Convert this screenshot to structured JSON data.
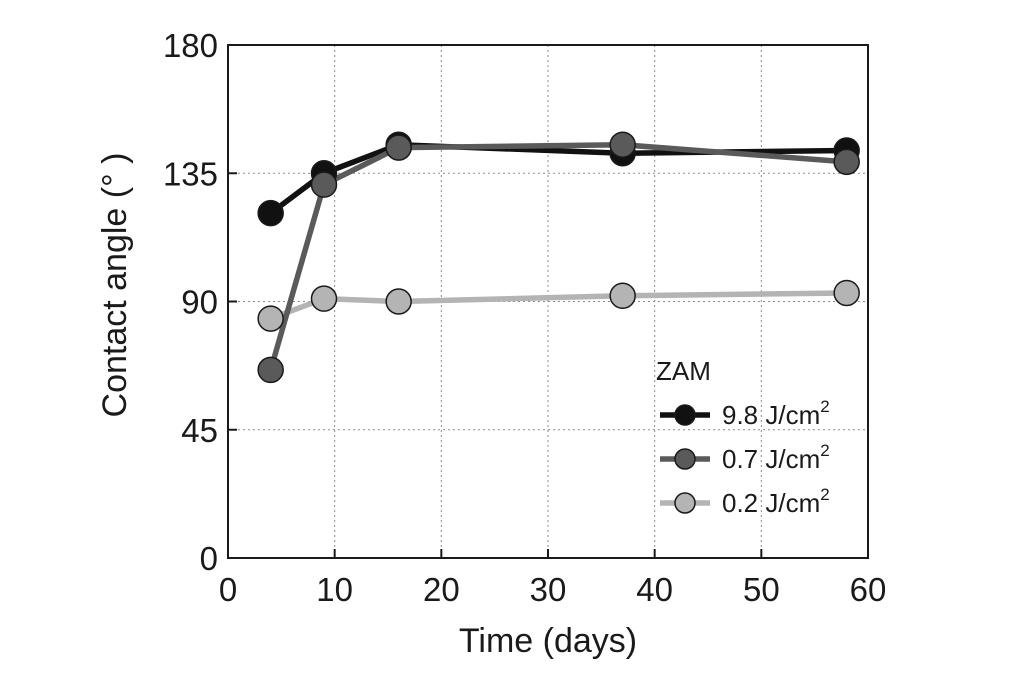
{
  "chart_data": {
    "type": "line",
    "title": "",
    "xlabel": "Time (days)",
    "ylabel": "Contact angle (° )",
    "xlim": [
      0,
      60
    ],
    "ylim": [
      0,
      180
    ],
    "x_ticks": [
      0,
      10,
      20,
      30,
      40,
      50,
      60
    ],
    "y_ticks": [
      0,
      45,
      90,
      135,
      180
    ],
    "x_tick_labels": [
      "0",
      "10",
      "20",
      "30",
      "40",
      "50",
      "60"
    ],
    "y_tick_labels": [
      "0",
      "45",
      "90",
      "135",
      "180"
    ],
    "grid": true,
    "legend": {
      "title": "ZAM",
      "position": "lower-right"
    },
    "series": [
      {
        "name": "9.8 J/cm",
        "name_sup": "2",
        "color": "#111111",
        "x": [
          4,
          9,
          16,
          37,
          58
        ],
        "y": [
          121,
          135,
          145,
          142,
          143
        ]
      },
      {
        "name": "0.7 J/cm",
        "name_sup": "2",
        "color": "#5a5a5a",
        "x": [
          4,
          9,
          16,
          37,
          58
        ],
        "y": [
          66,
          131,
          144,
          145,
          139
        ]
      },
      {
        "name": "0.2 J/cm",
        "name_sup": "2",
        "color": "#b4b4b4",
        "x": [
          4,
          9,
          16,
          37,
          58
        ],
        "y": [
          84,
          91,
          90,
          92,
          93
        ]
      }
    ]
  }
}
